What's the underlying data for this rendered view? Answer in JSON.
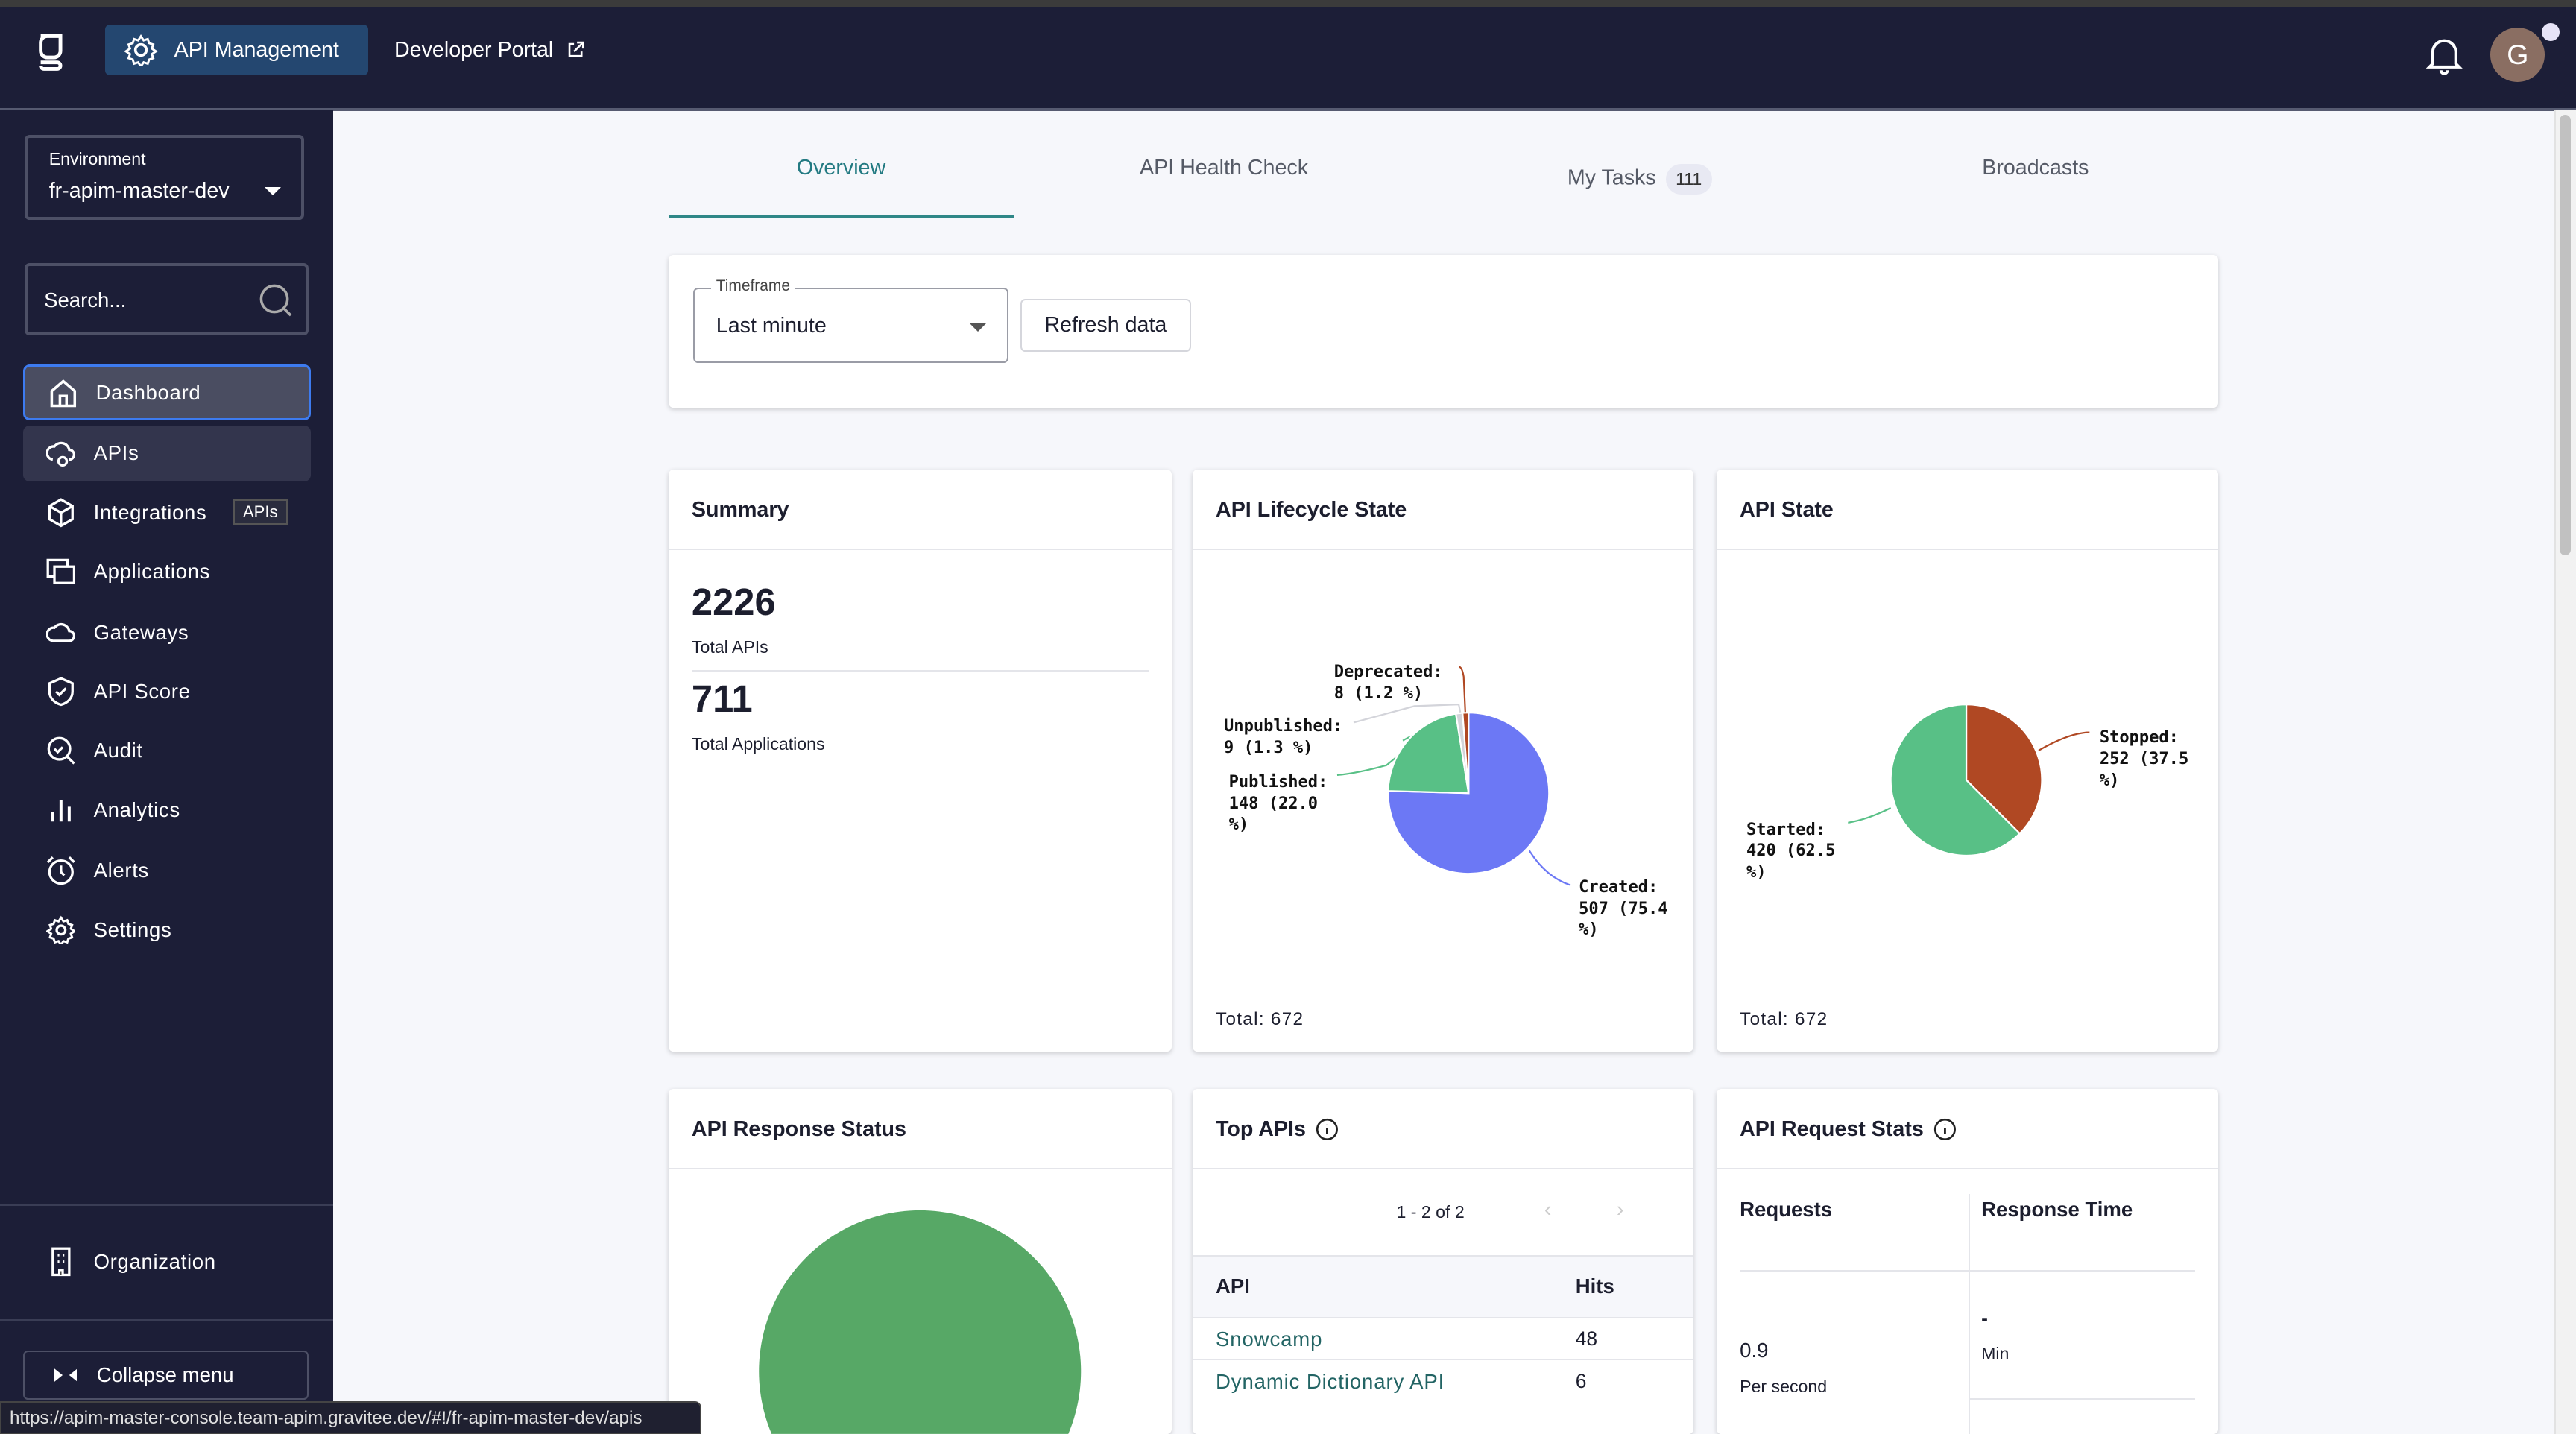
{
  "header": {
    "app_button": "API Management",
    "dev_portal": "Developer Portal",
    "avatar_initial": "G"
  },
  "sidebar": {
    "env_label": "Environment",
    "env_value": "fr-apim-master-dev",
    "search_placeholder": "Search...",
    "items": [
      {
        "label": "Dashboard",
        "icon": "home-icon"
      },
      {
        "label": "APIs",
        "icon": "cloud-gear-icon"
      },
      {
        "label": "Integrations",
        "icon": "cube-icon"
      },
      {
        "label": "Applications",
        "icon": "applications-icon"
      },
      {
        "label": "Gateways",
        "icon": "cloud-icon"
      },
      {
        "label": "API Score",
        "icon": "shield-check-icon"
      },
      {
        "label": "Audit",
        "icon": "search-check-icon"
      },
      {
        "label": "Analytics",
        "icon": "bar-chart-icon"
      },
      {
        "label": "Alerts",
        "icon": "alarm-icon"
      },
      {
        "label": "Settings",
        "icon": "gear-icon"
      }
    ],
    "tooltip": "APIs",
    "organization": "Organization",
    "collapse": "Collapse menu"
  },
  "status_url": "https://apim-master-console.team-apim.gravitee.dev/#!/fr-apim-master-dev/apis",
  "tabs": [
    {
      "label": "Overview",
      "active": true
    },
    {
      "label": "API Health Check"
    },
    {
      "label": "My Tasks",
      "badge": "111"
    },
    {
      "label": "Broadcasts"
    }
  ],
  "filters": {
    "timeframe_label": "Timeframe",
    "timeframe_value": "Last minute",
    "refresh": "Refresh data"
  },
  "summary": {
    "title": "Summary",
    "total_apis": "2226",
    "total_apis_label": "Total APIs",
    "total_apps": "711",
    "total_apps_label": "Total Applications"
  },
  "lifecycle": {
    "title": "API Lifecycle State",
    "total": "Total: 672"
  },
  "state": {
    "title": "API State",
    "total": "Total: 672"
  },
  "response_status": {
    "title": "API Response Status",
    "color": "#57a866"
  },
  "top_apis": {
    "title": "Top APIs",
    "pagination": "1 - 2 of 2",
    "col_api": "API",
    "col_hits": "Hits",
    "rows": [
      {
        "api": "Snowcamp",
        "hits": "48"
      },
      {
        "api": "Dynamic Dictionary API",
        "hits": "6"
      }
    ]
  },
  "request_stats": {
    "title": "API Request Stats",
    "col_requests": "Requests",
    "col_response": "Response Time",
    "requests_value": "0.9",
    "requests_unit": "Per second",
    "min_value": "-",
    "min_label": "Min"
  },
  "chart_data": [
    {
      "type": "pie",
      "title": "API Lifecycle State",
      "slices": [
        {
          "label": "Created",
          "value": 507,
          "percent": 75.4,
          "text": "Created:\n507 (75.4\n%)",
          "color": "#6c78f5"
        },
        {
          "label": "Published",
          "value": 148,
          "percent": 22.0,
          "text": "Published:\n148 (22.0\n%)",
          "color": "#58c086"
        },
        {
          "label": "Unpublished",
          "value": 9,
          "percent": 1.3,
          "text": "Unpublished:\n9 (1.3 %)",
          "color": "#d3d4da"
        },
        {
          "label": "Deprecated",
          "value": 8,
          "percent": 1.2,
          "text": "Deprecated:\n8 (1.2 %)",
          "color": "#b04823"
        }
      ]
    },
    {
      "type": "pie",
      "title": "API State",
      "slices": [
        {
          "label": "Stopped",
          "value": 252,
          "percent": 37.5,
          "text": "Stopped:\n252 (37.5\n%)",
          "color": "#b04823"
        },
        {
          "label": "Started",
          "value": 420,
          "percent": 62.5,
          "text": "Started:\n420 (62.5\n%)",
          "color": "#58c086"
        }
      ]
    }
  ]
}
